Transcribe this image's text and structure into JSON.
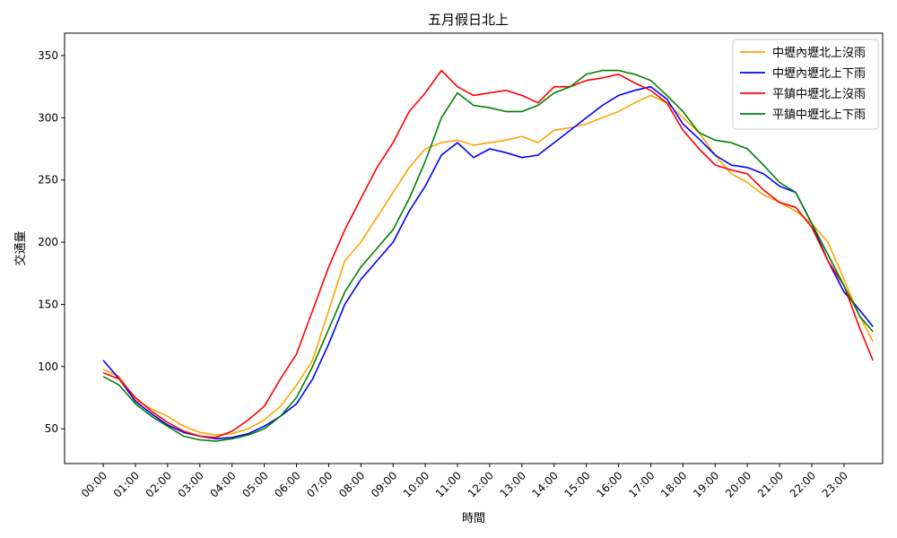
{
  "chart_data": {
    "type": "line",
    "title": "五月假日北上",
    "xlabel": "時間",
    "ylabel": "交通量",
    "xlim": [
      -1.2,
      24.2
    ],
    "ylim": [
      22,
      368
    ],
    "x_ticks": [
      0,
      1,
      2,
      3,
      4,
      5,
      6,
      7,
      8,
      9,
      10,
      11,
      12,
      13,
      14,
      15,
      16,
      17,
      18,
      19,
      20,
      21,
      22,
      23
    ],
    "x_tick_labels": [
      "00:00",
      "01:00",
      "02:00",
      "03:00",
      "04:00",
      "05:00",
      "06:00",
      "07:00",
      "08:00",
      "09:00",
      "10:00",
      "11:00",
      "12:00",
      "13:00",
      "14:00",
      "15:00",
      "16:00",
      "17:00",
      "18:00",
      "19:00",
      "20:00",
      "21:00",
      "22:00",
      "23:00"
    ],
    "y_ticks": [
      50,
      100,
      150,
      200,
      250,
      300,
      350
    ],
    "y_tick_labels": [
      "50",
      "100",
      "150",
      "200",
      "250",
      "300",
      "350"
    ],
    "grid": false,
    "legend_position": "top-right",
    "hours": [
      0,
      0.5,
      1,
      1.5,
      2,
      2.5,
      3,
      3.5,
      4,
      4.5,
      5,
      5.5,
      6,
      6.5,
      7,
      7.5,
      8,
      8.5,
      9,
      9.5,
      10,
      10.5,
      11,
      11.5,
      12,
      12.5,
      13,
      13.5,
      14,
      14.5,
      15,
      15.5,
      16,
      16.5,
      17,
      17.5,
      18,
      18.5,
      19,
      19.5,
      20,
      20.5,
      21,
      21.5,
      22,
      22.5,
      23,
      23.5,
      23.9
    ],
    "series": [
      {
        "name": "中壢內壢北上沒雨",
        "color": "#ffa500",
        "values": [
          98,
          92,
          73,
          66,
          60,
          52,
          47,
          45,
          46,
          50,
          57,
          68,
          85,
          105,
          145,
          185,
          200,
          220,
          240,
          260,
          275,
          280,
          282,
          278,
          280,
          282,
          285,
          280,
          290,
          292,
          295,
          300,
          305,
          312,
          318,
          312,
          300,
          288,
          270,
          255,
          248,
          238,
          232,
          225,
          215,
          200,
          170,
          140,
          120
        ]
      },
      {
        "name": "中壢內壢北上下雨",
        "color": "#0000ff",
        "values": [
          105,
          90,
          72,
          62,
          53,
          47,
          44,
          42,
          43,
          46,
          52,
          60,
          70,
          90,
          118,
          150,
          170,
          185,
          200,
          225,
          245,
          270,
          280,
          268,
          275,
          272,
          268,
          270,
          280,
          290,
          300,
          310,
          318,
          322,
          325,
          315,
          295,
          283,
          270,
          262,
          260,
          255,
          245,
          240,
          215,
          185,
          160,
          145,
          132
        ]
      },
      {
        "name": "平鎮中壢北上沒雨",
        "color": "#ff0000",
        "values": [
          95,
          90,
          75,
          64,
          55,
          48,
          44,
          43,
          48,
          57,
          68,
          90,
          110,
          145,
          180,
          210,
          235,
          260,
          280,
          305,
          320,
          338,
          325,
          318,
          320,
          322,
          318,
          312,
          325,
          325,
          330,
          332,
          335,
          328,
          322,
          312,
          290,
          275,
          262,
          258,
          255,
          242,
          232,
          228,
          212,
          185,
          165,
          130,
          105
        ]
      },
      {
        "name": "平鎮中壢北上下雨",
        "color": "#008000",
        "values": [
          92,
          85,
          70,
          60,
          52,
          44,
          41,
          40,
          42,
          45,
          50,
          60,
          75,
          100,
          130,
          160,
          180,
          195,
          210,
          235,
          265,
          300,
          320,
          310,
          308,
          305,
          305,
          310,
          320,
          325,
          335,
          338,
          338,
          335,
          330,
          318,
          305,
          288,
          282,
          280,
          275,
          262,
          248,
          240,
          215,
          190,
          165,
          140,
          128
        ]
      }
    ]
  }
}
